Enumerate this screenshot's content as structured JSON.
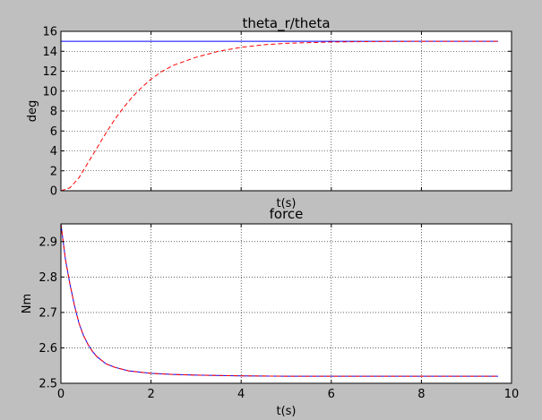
{
  "chart_data": [
    {
      "type": "line",
      "title": "theta_r/theta",
      "xlabel": "t(s)",
      "ylabel": "deg",
      "xlim": [
        0,
        10
      ],
      "ylim": [
        0,
        16
      ],
      "xticks": [
        0,
        2,
        4,
        6,
        8,
        10
      ],
      "xtick_labels_visible": false,
      "yticks": [
        0,
        2,
        4,
        6,
        8,
        10,
        12,
        14,
        16
      ],
      "ytick_labels": [
        "0",
        "2",
        "4",
        "6",
        "8",
        "10",
        "12",
        "14",
        "16"
      ],
      "grid": true,
      "series": [
        {
          "color": "#0000ff",
          "style": "solid",
          "points": [
            [
              0,
              15
            ],
            [
              9.7,
              15
            ]
          ]
        },
        {
          "color": "#ff0000",
          "style": "dashed",
          "points": [
            [
              0,
              0
            ],
            [
              0.2,
              0.3
            ],
            [
              0.4,
              1.3
            ],
            [
              0.6,
              2.8
            ],
            [
              0.8,
              4.3
            ],
            [
              1.0,
              5.8
            ],
            [
              1.2,
              7.2
            ],
            [
              1.4,
              8.4
            ],
            [
              1.6,
              9.5
            ],
            [
              1.8,
              10.4
            ],
            [
              2.0,
              11.2
            ],
            [
              2.25,
              12.0
            ],
            [
              2.5,
              12.6
            ],
            [
              3.0,
              13.4
            ],
            [
              3.5,
              14.0
            ],
            [
              4.0,
              14.4
            ],
            [
              4.5,
              14.65
            ],
            [
              5.0,
              14.8
            ],
            [
              6.0,
              14.93
            ],
            [
              7.0,
              14.98
            ],
            [
              8.0,
              15.0
            ],
            [
              9.7,
              15.0
            ]
          ]
        }
      ]
    },
    {
      "type": "line",
      "title": "force",
      "xlabel": "t(s)",
      "ylabel": "Nm",
      "xlim": [
        0,
        10
      ],
      "ylim": [
        2.5,
        2.95
      ],
      "xticks": [
        0,
        2,
        4,
        6,
        8,
        10
      ],
      "xtick_labels": [
        "0",
        "2",
        "4",
        "6",
        "8",
        "10"
      ],
      "yticks": [
        2.5,
        2.6,
        2.7,
        2.8,
        2.9
      ],
      "ytick_labels": [
        "2.5",
        "2.6",
        "2.7",
        "2.8",
        "2.9"
      ],
      "grid": true,
      "series": [
        {
          "color": "#0000ff",
          "style": "solid",
          "points": [
            [
              0,
              2.95
            ],
            [
              0.1,
              2.85
            ],
            [
              0.2,
              2.78
            ],
            [
              0.3,
              2.72
            ],
            [
              0.4,
              2.67
            ],
            [
              0.5,
              2.635
            ],
            [
              0.6,
              2.61
            ],
            [
              0.7,
              2.59
            ],
            [
              0.8,
              2.575
            ],
            [
              1.0,
              2.555
            ],
            [
              1.2,
              2.545
            ],
            [
              1.5,
              2.535
            ],
            [
              2.0,
              2.528
            ],
            [
              2.5,
              2.525
            ],
            [
              3.0,
              2.523
            ],
            [
              4.0,
              2.521
            ],
            [
              5.0,
              2.52
            ],
            [
              7.0,
              2.52
            ],
            [
              9.7,
              2.52
            ]
          ]
        },
        {
          "color": "#ff0000",
          "style": "dashed",
          "points": [
            [
              0,
              2.95
            ],
            [
              0.1,
              2.85
            ],
            [
              0.2,
              2.78
            ],
            [
              0.3,
              2.72
            ],
            [
              0.4,
              2.67
            ],
            [
              0.5,
              2.635
            ],
            [
              0.6,
              2.61
            ],
            [
              0.7,
              2.59
            ],
            [
              0.8,
              2.575
            ],
            [
              1.0,
              2.555
            ],
            [
              1.2,
              2.545
            ],
            [
              1.5,
              2.535
            ],
            [
              2.0,
              2.528
            ],
            [
              2.5,
              2.525
            ],
            [
              3.0,
              2.523
            ],
            [
              4.0,
              2.521
            ],
            [
              5.0,
              2.52
            ],
            [
              7.0,
              2.52
            ],
            [
              9.7,
              2.52
            ]
          ]
        }
      ]
    }
  ]
}
